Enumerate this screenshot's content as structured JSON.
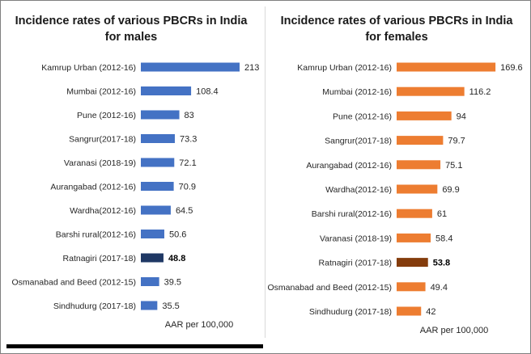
{
  "chart_data": [
    {
      "type": "bar",
      "orientation": "horizontal",
      "title": "Incidence rates of various PBCRs in India for males",
      "title_lines": [
        "Incidence rates of various PBCRs in India",
        "for males"
      ],
      "xlabel": "AAR per 100,000",
      "ylabel": "",
      "xlim": [
        0,
        220
      ],
      "grid": false,
      "color": "#4472c4",
      "highlight_color": "#1f3864",
      "highlight_index": 8,
      "categories": [
        "Kamrup Urban (2012-16)",
        "Mumbai (2012-16)",
        "Pune (2012-16)",
        "Sangrur(2017-18)",
        "Varanasi (2018-19)",
        "Aurangabad (2012-16)",
        "Wardha(2012-16)",
        "Barshi rural(2012-16)",
        "Ratnagiri (2017-18)",
        "Osmanabad and Beed (2012-15)",
        "Sindhudurg (2017-18)"
      ],
      "values": [
        213,
        108.4,
        83,
        73.3,
        72.1,
        70.9,
        64.5,
        50.6,
        48.8,
        39.5,
        35.5
      ],
      "value_labels": [
        "213",
        "108.4",
        "83",
        "73.3",
        "72.1",
        "70.9",
        "64.5",
        "50.6",
        "48.8",
        "39.5",
        "35.5"
      ]
    },
    {
      "type": "bar",
      "orientation": "horizontal",
      "title": "Incidence rates of various PBCRs in India for females",
      "title_lines": [
        "Incidence rates of various PBCRs in India",
        "for females"
      ],
      "xlabel": "AAR per 100,000",
      "ylabel": "",
      "xlim": [
        0,
        175
      ],
      "grid": false,
      "color": "#ed7d31",
      "highlight_color": "#843c0c",
      "highlight_index": 8,
      "categories": [
        "Kamrup Urban (2012-16)",
        "Mumbai (2012-16)",
        "Pune (2012-16)",
        "Sangrur(2017-18)",
        "Aurangabad (2012-16)",
        "Wardha(2012-16)",
        "Barshi rural(2012-16)",
        "Varanasi (2018-19)",
        "Ratnagiri (2017-18)",
        "Osmanabad and Beed (2012-15)",
        "Sindhudurg (2017-18)"
      ],
      "values": [
        169.6,
        116.2,
        94,
        79.7,
        75.1,
        69.9,
        61,
        58.4,
        53.8,
        49.4,
        42
      ],
      "value_labels": [
        "169.6",
        "116.2",
        "94",
        "79.7",
        "75.1",
        "69.9",
        "61",
        "58.4",
        "53.8",
        "49.4",
        "42"
      ]
    }
  ]
}
